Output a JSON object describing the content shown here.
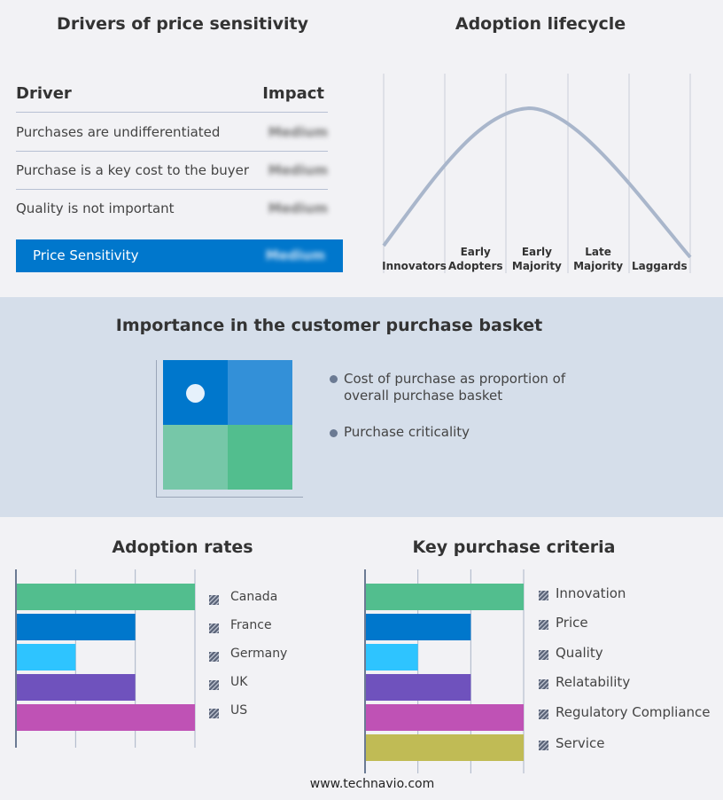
{
  "drivers": {
    "title": "Drivers of price sensitivity",
    "col_driver": "Driver",
    "col_impact": "Impact",
    "rows": [
      {
        "driver": "Purchases are undifferentiated",
        "impact": "Medium"
      },
      {
        "driver": "Purchase is a key cost to the buyer",
        "impact": "Medium"
      },
      {
        "driver": "Quality is not important",
        "impact": "Medium"
      }
    ],
    "summary": {
      "label": "Price Sensitivity",
      "impact": "Medium"
    },
    "accent": "#0077cc"
  },
  "lifecycle": {
    "title": "Adoption lifecycle",
    "stages": [
      [
        "Innovators"
      ],
      [
        "Early",
        "Adopters"
      ],
      [
        "Early",
        "Majority"
      ],
      [
        "Late",
        "Majority"
      ],
      [
        "Laggards"
      ]
    ],
    "curve_color": "#a9b6cb"
  },
  "basket": {
    "title": "Importance in the customer purchase basket",
    "legend": [
      "Cost of purchase as proportion of overall purchase basket",
      "Purchase criticality"
    ],
    "quadrant_colors": [
      "#0077cc",
      "#3390d8",
      "#76c7a8",
      "#52be8e"
    ]
  },
  "chart_data": [
    {
      "type": "bar",
      "title": "Adoption rates",
      "orientation": "horizontal",
      "categories": [
        "Canada",
        "France",
        "Germany",
        "UK",
        "US"
      ],
      "values": [
        3,
        2,
        1,
        2,
        3
      ],
      "xlim": [
        0,
        3
      ],
      "grid": true,
      "legend": "right",
      "colors": [
        "#52be8e",
        "#0077cc",
        "#2ec4ff",
        "#6f52bd",
        "#bf52b5"
      ]
    },
    {
      "type": "bar",
      "title": "Key purchase criteria",
      "orientation": "horizontal",
      "categories": [
        "Innovation",
        "Price",
        "Quality",
        "Relatability",
        "Regulatory Compliance",
        "Service"
      ],
      "values": [
        3,
        2,
        1,
        2,
        3,
        3
      ],
      "xlim": [
        0,
        3
      ],
      "grid": true,
      "legend": "right",
      "colors": [
        "#52be8e",
        "#0077cc",
        "#2ec4ff",
        "#6f52bd",
        "#bf52b5",
        "#c0bb55"
      ]
    }
  ],
  "footer": "www.technavio.com"
}
